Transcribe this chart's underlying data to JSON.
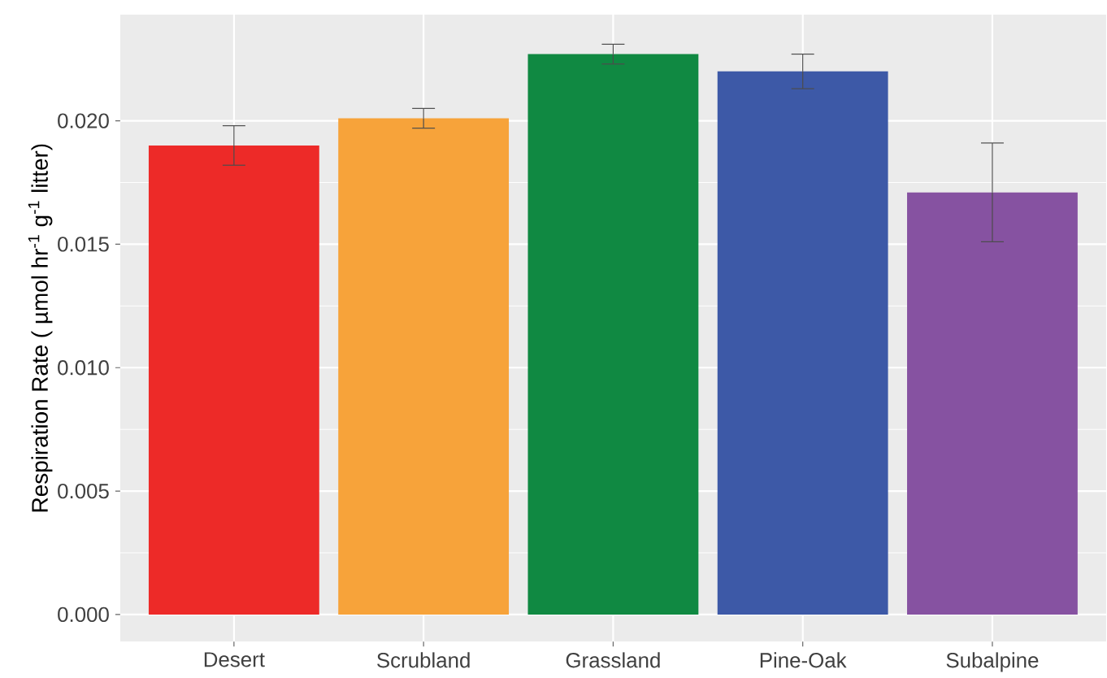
{
  "chart_data": {
    "type": "bar",
    "ylabel": "Respiration Rate ( µmol hr$^{-1}$ g$^{-1}$ litter)",
    "categories": [
      "Desert",
      "Scrubland",
      "Grassland",
      "Pine-Oak",
      "Subalpine"
    ],
    "values": [
      0.019,
      0.0201,
      0.0227,
      0.022,
      0.0171
    ],
    "errors": [
      0.0008,
      0.0004,
      0.0004,
      0.0007,
      0.002
    ],
    "colors": [
      "#ed2a28",
      "#f7a33a",
      "#108942",
      "#3d59a7",
      "#8652a1"
    ],
    "ylim": [
      -0.0011,
      0.0243
    ],
    "yticks": [
      {
        "value": 0,
        "label": "0.000"
      },
      {
        "value": 0.005,
        "label": "0.005"
      },
      {
        "value": 0.01,
        "label": "0.010"
      },
      {
        "value": 0.015,
        "label": "0.015"
      },
      {
        "value": 0.02,
        "label": "0.020"
      }
    ],
    "grid": true
  }
}
